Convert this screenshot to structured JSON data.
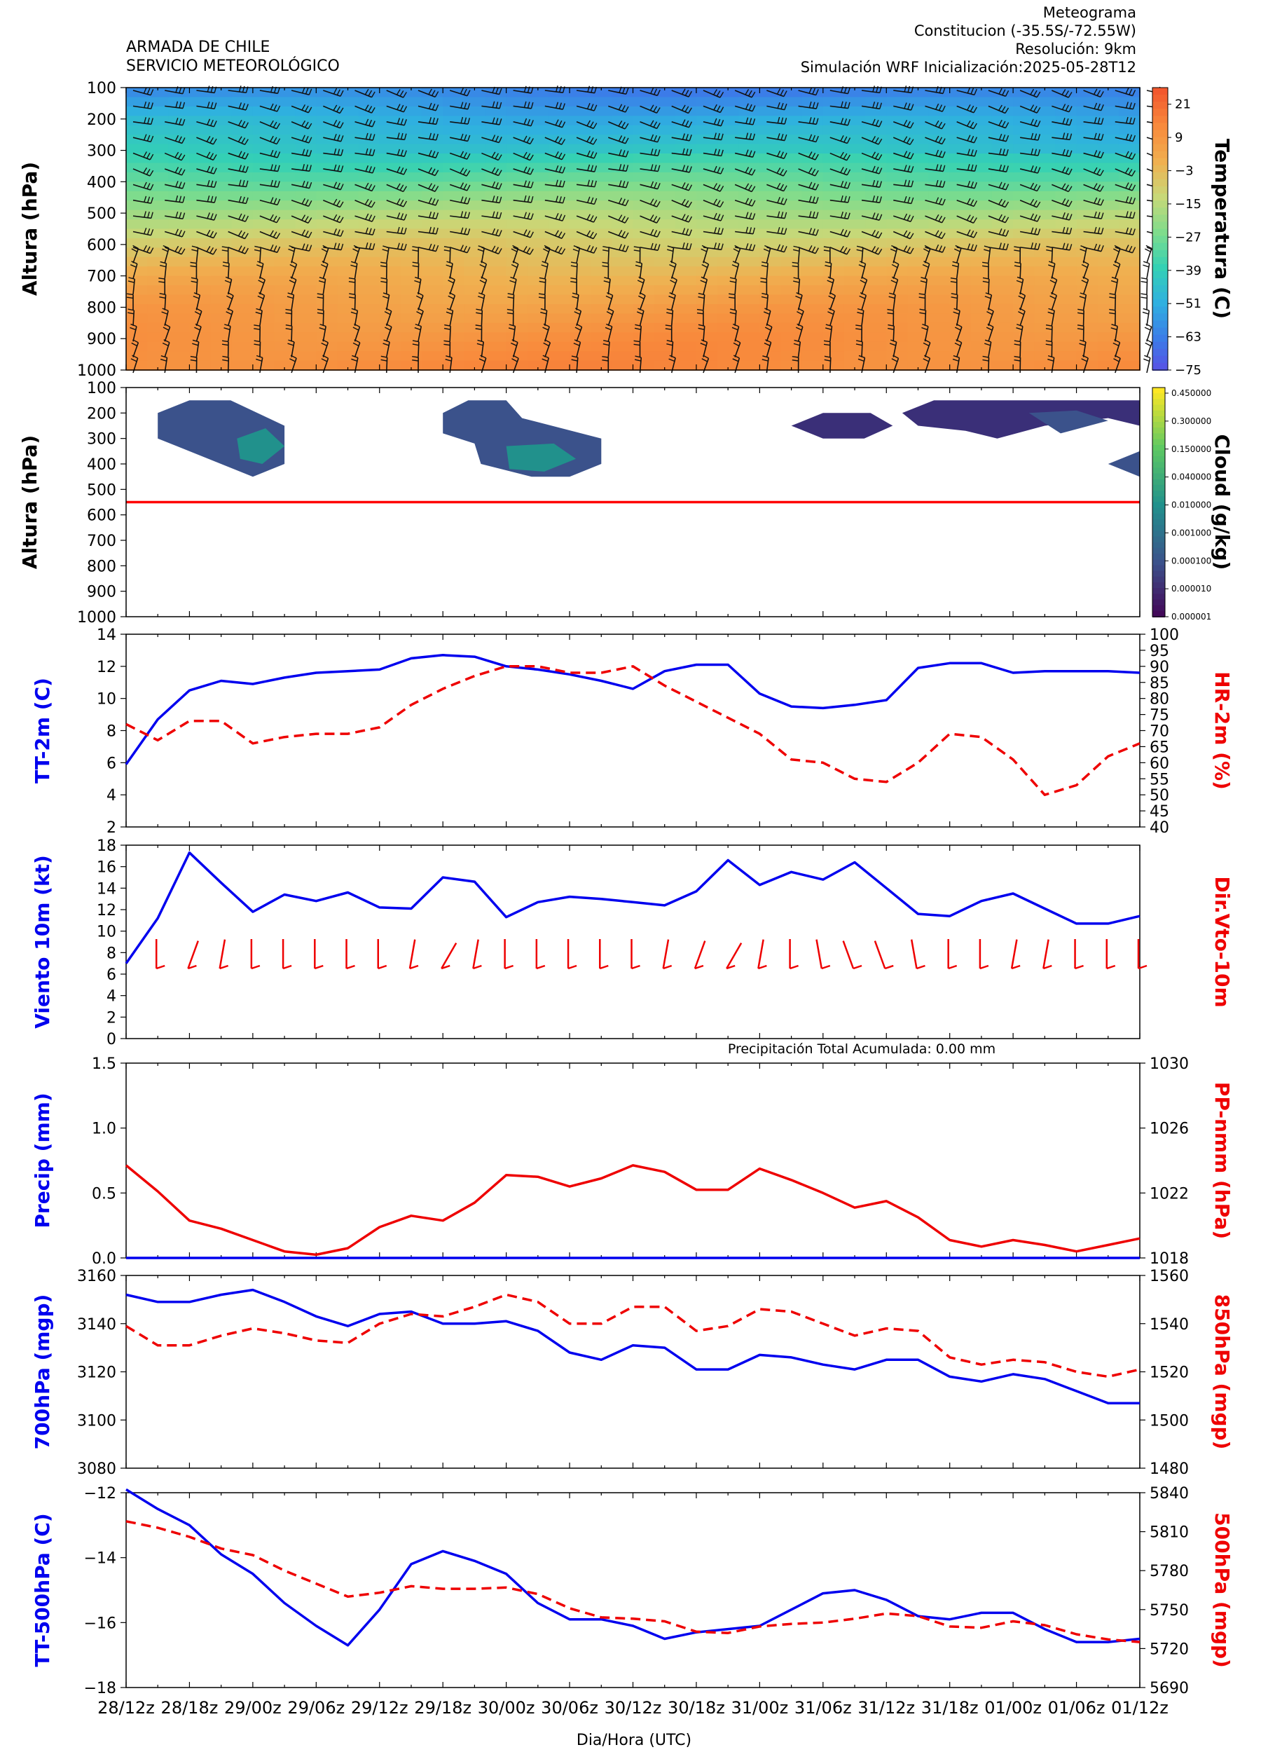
{
  "header": {
    "org_line1": "ARMADA DE CHILE",
    "org_line2": "SERVICIO METEOROLÓGICO",
    "title": "Meteograma",
    "location": "Constitucion  (-35.5S/-72.55W)",
    "resolution": "Resolución: 9km",
    "simulation": "Simulación WRF   Inicialización:2025-05-28T12"
  },
  "x_axis": {
    "label": "Dia/Hora (UTC)",
    "ticks": [
      "28/12z",
      "28/18z",
      "29/00z",
      "29/06z",
      "29/12z",
      "29/18z",
      "30/00z",
      "30/06z",
      "30/12z",
      "30/18z",
      "31/00z",
      "31/06z",
      "31/12z",
      "31/18z",
      "01/00z",
      "01/06z",
      "01/12z"
    ]
  },
  "colors": {
    "blue": "#0000ee",
    "red": "#ee0000",
    "temp_colormap": [
      "#5b4de4",
      "#3b7de8",
      "#2fb0e0",
      "#34d1b4",
      "#7fdc8c",
      "#c8d878",
      "#f0b050",
      "#f88a3c",
      "#f2582e"
    ],
    "cloud_colormap": [
      "#440154",
      "#3b528b",
      "#21918c",
      "#5ec962",
      "#fde725"
    ]
  },
  "chart_data": [
    {
      "type": "heatmap",
      "panel": "temperature-wind",
      "ylabel": "Altura (hPa)",
      "y_ticks": [
        "100",
        "200",
        "300",
        "400",
        "500",
        "600",
        "700",
        "800",
        "900",
        "1000"
      ],
      "ylim": [
        1000,
        100
      ],
      "colorbar_label": "Temperatura (C)",
      "colorbar_ticks": [
        "21",
        "9",
        "−3",
        "−15",
        "−27",
        "−39",
        "−51",
        "−63",
        "−75"
      ],
      "colorbar_range": [
        -75,
        27
      ],
      "levels_hpa": [
        100,
        200,
        300,
        400,
        500,
        600,
        700,
        800,
        900,
        1000
      ],
      "temperature_profile_c": [
        -60,
        -48,
        -40,
        -28,
        -16,
        -6,
        2,
        8,
        12,
        14
      ]
    },
    {
      "type": "heatmap",
      "panel": "cloud",
      "ylabel": "Altura (hPa)",
      "y_ticks": [
        "100",
        "200",
        "300",
        "400",
        "500",
        "600",
        "700",
        "800",
        "900",
        "1000"
      ],
      "ylim": [
        1000,
        100
      ],
      "colorbar_label": "Cloud (g/kg)",
      "colorbar_ticks": [
        "0.450000",
        "0.300000",
        "0.150000",
        "0.040000",
        "0.010000",
        "0.001000",
        "0.000100",
        "0.000010",
        "0.000001"
      ],
      "reference_line_hpa": 550
    },
    {
      "type": "line",
      "panel": "tt2m-hr2m",
      "ylabel": "TT-2m (C)",
      "y2label": "HR-2m (%)",
      "ylim": [
        2,
        14
      ],
      "y2lim": [
        40,
        100
      ],
      "y_ticks": [
        "2",
        "4",
        "6",
        "8",
        "10",
        "12",
        "14"
      ],
      "y2_ticks": [
        "40",
        "45",
        "50",
        "55",
        "60",
        "65",
        "70",
        "75",
        "80",
        "85",
        "90",
        "95",
        "100"
      ],
      "series": [
        {
          "name": "TT-2m (C)",
          "axis": "left",
          "style": "solid",
          "values": [
            5.9,
            8.7,
            10.5,
            11.1,
            10.9,
            11.3,
            11.6,
            11.7,
            11.8,
            12.5,
            12.7,
            12.6,
            12.0,
            11.8,
            11.5,
            11.1,
            10.6,
            11.7,
            12.1,
            12.1,
            10.3,
            9.5,
            9.4,
            9.6,
            9.9,
            11.9,
            12.2,
            12.2,
            11.6,
            11.7,
            11.7,
            11.7,
            11.6
          ]
        },
        {
          "name": "HR-2m (%)",
          "axis": "right",
          "style": "dashed",
          "values": [
            72,
            67,
            73,
            73,
            66,
            68,
            69,
            69,
            71,
            78,
            83,
            87,
            90,
            90,
            88,
            88,
            90,
            84,
            79,
            74,
            69,
            61,
            60,
            55,
            54,
            60,
            69,
            68,
            61,
            50,
            53,
            62,
            66
          ]
        }
      ]
    },
    {
      "type": "line",
      "panel": "wind10m",
      "ylabel": "Viento 10m (kt)",
      "y2label": "Dir.Vto-10m",
      "ylim": [
        0,
        18
      ],
      "y_ticks": [
        "0",
        "2",
        "4",
        "6",
        "8",
        "10",
        "12",
        "14",
        "16",
        "18"
      ],
      "series": [
        {
          "name": "Viento 10m (kt)",
          "axis": "left",
          "style": "solid",
          "values": [
            7.0,
            11.2,
            17.3,
            14.5,
            11.8,
            13.4,
            12.8,
            13.6,
            12.2,
            12.1,
            15.0,
            14.6,
            11.3,
            12.7,
            13.2,
            13.0,
            12.7,
            12.4,
            13.7,
            16.6,
            14.3,
            15.5,
            14.8,
            16.4,
            14.0,
            11.6,
            11.4,
            12.8,
            13.5,
            12.1,
            10.7,
            10.7,
            11.4
          ]
        }
      ],
      "direction_barbs_deg": [
        170,
        180,
        200,
        190,
        180,
        180,
        180,
        180,
        180,
        190,
        210,
        190,
        180,
        180,
        180,
        180,
        180,
        190,
        200,
        210,
        190,
        180,
        170,
        160,
        160,
        170,
        180,
        180,
        190,
        190,
        180,
        180,
        180
      ]
    },
    {
      "type": "line",
      "panel": "precip-pnmm",
      "ylabel": "Precip (mm)",
      "y2label": "PP-nmm (hPa)",
      "annotation": "Precipitación Total Acumulada: 0.00 mm",
      "ylim": [
        0.0,
        1.5
      ],
      "y2lim": [
        1018,
        1030
      ],
      "y_ticks": [
        "0.0",
        "0.5",
        "1.0",
        "1.5"
      ],
      "y2_ticks": [
        "1018",
        "1022",
        "1026",
        "1030"
      ],
      "series": [
        {
          "name": "Precip (mm)",
          "axis": "left",
          "style": "solid",
          "values": [
            0,
            0,
            0,
            0,
            0,
            0,
            0,
            0,
            0,
            0,
            0,
            0,
            0,
            0,
            0,
            0,
            0,
            0,
            0,
            0,
            0,
            0,
            0,
            0,
            0,
            0,
            0,
            0,
            0,
            0,
            0,
            0,
            0
          ]
        },
        {
          "name": "PP-nmm (hPa)",
          "axis": "right",
          "style": "solid",
          "values": [
            1023.7,
            1022.1,
            1020.3,
            1019.8,
            1019.1,
            1018.4,
            1018.2,
            1018.6,
            1019.9,
            1020.6,
            1020.3,
            1021.4,
            1023.1,
            1023.0,
            1022.4,
            1022.9,
            1023.7,
            1023.3,
            1022.2,
            1022.2,
            1023.5,
            1022.8,
            1022.0,
            1021.1,
            1021.5,
            1020.5,
            1019.1,
            1018.7,
            1019.1,
            1018.8,
            1018.4,
            1018.8,
            1019.2
          ]
        }
      ]
    },
    {
      "type": "line",
      "panel": "geopotential-700-850",
      "ylabel": "700hPa (mgp)",
      "y2label": "850hPa (mgp)",
      "ylim": [
        3080,
        3160
      ],
      "y2lim": [
        1480,
        1560
      ],
      "y_ticks": [
        "3080",
        "3100",
        "3120",
        "3140",
        "3160"
      ],
      "y2_ticks": [
        "1480",
        "1500",
        "1520",
        "1540",
        "1560"
      ],
      "series": [
        {
          "name": "700hPa (mgp)",
          "axis": "left",
          "style": "solid",
          "values": [
            3152,
            3149,
            3149,
            3152,
            3154,
            3149,
            3143,
            3139,
            3144,
            3145,
            3140,
            3140,
            3141,
            3137,
            3128,
            3125,
            3131,
            3130,
            3121,
            3121,
            3127,
            3126,
            3123,
            3121,
            3125,
            3125,
            3118,
            3116,
            3119,
            3117,
            3112,
            3107,
            3107
          ]
        },
        {
          "name": "850hPa (mgp)",
          "axis": "right",
          "style": "dashed",
          "values": [
            1539,
            1531,
            1531,
            1535,
            1538,
            1536,
            1533,
            1532,
            1540,
            1544,
            1543,
            1547,
            1552,
            1549,
            1540,
            1540,
            1547,
            1547,
            1537,
            1539,
            1546,
            1545,
            1540,
            1535,
            1538,
            1537,
            1526,
            1523,
            1525,
            1524,
            1520,
            1518,
            1521
          ]
        }
      ]
    },
    {
      "type": "line",
      "panel": "tt500-z500",
      "ylabel": "TT-500hPa (C)",
      "y2label": "500hPa (mgp)",
      "ylim": [
        -18,
        -12
      ],
      "y2lim": [
        5690,
        5840
      ],
      "y_ticks": [
        "−18",
        "−16",
        "−14",
        "−12"
      ],
      "y2_ticks": [
        "5690",
        "5720",
        "5750",
        "5780",
        "5810",
        "5840"
      ],
      "series": [
        {
          "name": "TT-500hPa (C)",
          "axis": "left",
          "style": "solid",
          "values": [
            -11.9,
            -12.5,
            -13.0,
            -13.9,
            -14.5,
            -15.4,
            -16.1,
            -16.7,
            -15.6,
            -14.2,
            -13.8,
            -14.1,
            -14.5,
            -15.4,
            -15.9,
            -15.9,
            -16.1,
            -16.5,
            -16.3,
            -16.2,
            -16.1,
            -15.6,
            -15.1,
            -15.0,
            -15.3,
            -15.8,
            -15.9,
            -15.7,
            -15.7,
            -16.2,
            -16.6,
            -16.6,
            -16.5
          ]
        },
        {
          "name": "500hPa (mgp)",
          "axis": "right",
          "style": "dashed",
          "values": [
            5818,
            5813,
            5806,
            5797,
            5792,
            5780,
            5770,
            5760,
            5763,
            5768,
            5766,
            5766,
            5767,
            5762,
            5751,
            5744,
            5743,
            5741,
            5733,
            5732,
            5737,
            5739,
            5740,
            5743,
            5747,
            5745,
            5737,
            5736,
            5741,
            5738,
            5731,
            5727,
            5725
          ]
        }
      ]
    }
  ]
}
